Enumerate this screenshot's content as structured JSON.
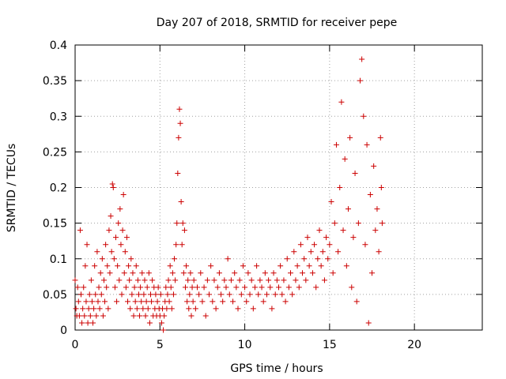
{
  "chart_data": {
    "type": "scatter",
    "title": "Day 207 of 2018, SRMTID for receiver pepe",
    "xlabel": "GPS time / hours",
    "ylabel": "SRMTID / TECUs",
    "xlim": [
      0,
      24
    ],
    "ylim": [
      0,
      0.4
    ],
    "x_ticks": [
      0,
      5,
      10,
      15,
      20
    ],
    "y_ticks": [
      0,
      0.05,
      0.1,
      0.15,
      0.2,
      0.25,
      0.3,
      0.35,
      0.4
    ],
    "x_tick_labels": [
      "0",
      "5",
      "10",
      "15",
      "20"
    ],
    "y_tick_labels": [
      "0",
      "0.05",
      "0.1",
      "0.15",
      "0.2",
      "0.25",
      "0.3",
      "0.35",
      "0.4"
    ],
    "grid": true,
    "marker": "+",
    "color": "#cc0000",
    "series": [
      {
        "name": "SRMTID",
        "points": [
          [
            0.0,
            0.07
          ],
          [
            0.05,
            0.03
          ],
          [
            0.1,
            0.02
          ],
          [
            0.15,
            0.06
          ],
          [
            0.2,
            0.04
          ],
          [
            0.25,
            0.02
          ],
          [
            0.3,
            0.14
          ],
          [
            0.35,
            0.05
          ],
          [
            0.4,
            0.01
          ],
          [
            0.45,
            0.03
          ],
          [
            0.5,
            0.06
          ],
          [
            0.55,
            0.02
          ],
          [
            0.6,
            0.09
          ],
          [
            0.65,
            0.04
          ],
          [
            0.7,
            0.12
          ],
          [
            0.75,
            0.01
          ],
          [
            0.8,
            0.03
          ],
          [
            0.85,
            0.05
          ],
          [
            0.9,
            0.02
          ],
          [
            0.95,
            0.07
          ],
          [
            1.0,
            0.04
          ],
          [
            1.05,
            0.01
          ],
          [
            1.1,
            0.03
          ],
          [
            1.15,
            0.09
          ],
          [
            1.2,
            0.05
          ],
          [
            1.25,
            0.02
          ],
          [
            1.3,
            0.11
          ],
          [
            1.35,
            0.04
          ],
          [
            1.4,
            0.06
          ],
          [
            1.45,
            0.03
          ],
          [
            1.5,
            0.08
          ],
          [
            1.55,
            0.05
          ],
          [
            1.6,
            0.1
          ],
          [
            1.65,
            0.02
          ],
          [
            1.7,
            0.07
          ],
          [
            1.75,
            0.04
          ],
          [
            1.8,
            0.12
          ],
          [
            1.85,
            0.06
          ],
          [
            1.9,
            0.09
          ],
          [
            1.95,
            0.03
          ],
          [
            2.0,
            0.14
          ],
          [
            2.05,
            0.08
          ],
          [
            2.1,
            0.16
          ],
          [
            2.15,
            0.11
          ],
          [
            2.2,
            0.205
          ],
          [
            2.25,
            0.2
          ],
          [
            2.3,
            0.1
          ],
          [
            2.35,
            0.06
          ],
          [
            2.4,
            0.13
          ],
          [
            2.45,
            0.04
          ],
          [
            2.5,
            0.09
          ],
          [
            2.55,
            0.15
          ],
          [
            2.6,
            0.07
          ],
          [
            2.65,
            0.17
          ],
          [
            2.7,
            0.12
          ],
          [
            2.75,
            0.05
          ],
          [
            2.8,
            0.14
          ],
          [
            2.85,
            0.19
          ],
          [
            2.9,
            0.08
          ],
          [
            2.95,
            0.11
          ],
          [
            3.0,
            0.06
          ],
          [
            3.05,
            0.13
          ],
          [
            3.1,
            0.04
          ],
          [
            3.15,
            0.09
          ],
          [
            3.2,
            0.07
          ],
          [
            3.25,
            0.03
          ],
          [
            3.3,
            0.1
          ],
          [
            3.35,
            0.05
          ],
          [
            3.4,
            0.08
          ],
          [
            3.45,
            0.02
          ],
          [
            3.5,
            0.06
          ],
          [
            3.55,
            0.04
          ],
          [
            3.6,
            0.09
          ],
          [
            3.65,
            0.03
          ],
          [
            3.7,
            0.07
          ],
          [
            3.75,
            0.05
          ],
          [
            3.8,
            0.02
          ],
          [
            3.85,
            0.06
          ],
          [
            3.9,
            0.04
          ],
          [
            3.95,
            0.08
          ],
          [
            4.0,
            0.03
          ],
          [
            4.05,
            0.05
          ],
          [
            4.1,
            0.07
          ],
          [
            4.15,
            0.02
          ],
          [
            4.2,
            0.04
          ],
          [
            4.25,
            0.06
          ],
          [
            4.3,
            0.03
          ],
          [
            4.35,
            0.08
          ],
          [
            4.4,
            0.01
          ],
          [
            4.45,
            0.05
          ],
          [
            4.5,
            0.04
          ],
          [
            4.55,
            0.07
          ],
          [
            4.6,
            0.02
          ],
          [
            4.65,
            0.06
          ],
          [
            4.7,
            0.03
          ],
          [
            4.75,
            0.05
          ],
          [
            4.8,
            0.02
          ],
          [
            4.85,
            0.04
          ],
          [
            4.9,
            0.06
          ],
          [
            4.95,
            0.03
          ],
          [
            5.0,
            0.02
          ],
          [
            5.05,
            0.05
          ],
          [
            5.1,
            0.01
          ],
          [
            5.15,
            0.03
          ],
          [
            5.2,
            0.0
          ],
          [
            5.25,
            0.02
          ],
          [
            5.3,
            0.04
          ],
          [
            5.35,
            0.06
          ],
          [
            5.4,
            0.03
          ],
          [
            5.45,
            0.05
          ],
          [
            5.5,
            0.07
          ],
          [
            5.55,
            0.04
          ],
          [
            5.6,
            0.09
          ],
          [
            5.65,
            0.06
          ],
          [
            5.7,
            0.03
          ],
          [
            5.75,
            0.08
          ],
          [
            5.8,
            0.05
          ],
          [
            5.85,
            0.1
          ],
          [
            5.9,
            0.07
          ],
          [
            5.95,
            0.12
          ],
          [
            6.0,
            0.15
          ],
          [
            6.05,
            0.22
          ],
          [
            6.1,
            0.27
          ],
          [
            6.15,
            0.31
          ],
          [
            6.2,
            0.29
          ],
          [
            6.25,
            0.18
          ],
          [
            6.3,
            0.12
          ],
          [
            6.35,
            0.15
          ],
          [
            6.4,
            0.08
          ],
          [
            6.45,
            0.14
          ],
          [
            6.5,
            0.06
          ],
          [
            6.55,
            0.09
          ],
          [
            6.6,
            0.04
          ],
          [
            6.65,
            0.07
          ],
          [
            6.7,
            0.03
          ],
          [
            6.75,
            0.05
          ],
          [
            6.8,
            0.08
          ],
          [
            6.85,
            0.02
          ],
          [
            6.9,
            0.06
          ],
          [
            6.95,
            0.04
          ],
          [
            7.0,
            0.07
          ],
          [
            7.1,
            0.03
          ],
          [
            7.2,
            0.06
          ],
          [
            7.3,
            0.05
          ],
          [
            7.4,
            0.08
          ],
          [
            7.5,
            0.04
          ],
          [
            7.6,
            0.06
          ],
          [
            7.7,
            0.02
          ],
          [
            7.8,
            0.07
          ],
          [
            7.9,
            0.05
          ],
          [
            8.0,
            0.09
          ],
          [
            8.1,
            0.04
          ],
          [
            8.2,
            0.07
          ],
          [
            8.3,
            0.03
          ],
          [
            8.4,
            0.06
          ],
          [
            8.5,
            0.08
          ],
          [
            8.6,
            0.05
          ],
          [
            8.7,
            0.04
          ],
          [
            8.8,
            0.07
          ],
          [
            8.9,
            0.06
          ],
          [
            9.0,
            0.1
          ],
          [
            9.1,
            0.05
          ],
          [
            9.2,
            0.07
          ],
          [
            9.3,
            0.04
          ],
          [
            9.4,
            0.08
          ],
          [
            9.5,
            0.06
          ],
          [
            9.6,
            0.03
          ],
          [
            9.7,
            0.07
          ],
          [
            9.8,
            0.05
          ],
          [
            9.9,
            0.09
          ],
          [
            10.0,
            0.06
          ],
          [
            10.1,
            0.04
          ],
          [
            10.2,
            0.08
          ],
          [
            10.3,
            0.05
          ],
          [
            10.4,
            0.07
          ],
          [
            10.5,
            0.03
          ],
          [
            10.6,
            0.06
          ],
          [
            10.7,
            0.09
          ],
          [
            10.8,
            0.05
          ],
          [
            10.9,
            0.07
          ],
          [
            11.0,
            0.06
          ],
          [
            11.1,
            0.04
          ],
          [
            11.2,
            0.08
          ],
          [
            11.3,
            0.05
          ],
          [
            11.4,
            0.07
          ],
          [
            11.5,
            0.06
          ],
          [
            11.6,
            0.03
          ],
          [
            11.7,
            0.08
          ],
          [
            11.8,
            0.05
          ],
          [
            11.9,
            0.07
          ],
          [
            12.0,
            0.06
          ],
          [
            12.1,
            0.09
          ],
          [
            12.2,
            0.05
          ],
          [
            12.3,
            0.07
          ],
          [
            12.4,
            0.04
          ],
          [
            12.5,
            0.1
          ],
          [
            12.6,
            0.06
          ],
          [
            12.7,
            0.08
          ],
          [
            12.8,
            0.05
          ],
          [
            12.9,
            0.11
          ],
          [
            13.0,
            0.07
          ],
          [
            13.1,
            0.09
          ],
          [
            13.2,
            0.06
          ],
          [
            13.3,
            0.12
          ],
          [
            13.4,
            0.08
          ],
          [
            13.5,
            0.1
          ],
          [
            13.6,
            0.07
          ],
          [
            13.7,
            0.13
          ],
          [
            13.8,
            0.09
          ],
          [
            13.9,
            0.11
          ],
          [
            14.0,
            0.08
          ],
          [
            14.1,
            0.12
          ],
          [
            14.2,
            0.06
          ],
          [
            14.3,
            0.1
          ],
          [
            14.4,
            0.14
          ],
          [
            14.5,
            0.09
          ],
          [
            14.6,
            0.11
          ],
          [
            14.7,
            0.07
          ],
          [
            14.8,
            0.13
          ],
          [
            14.9,
            0.1
          ],
          [
            15.0,
            0.12
          ],
          [
            15.1,
            0.18
          ],
          [
            15.2,
            0.08
          ],
          [
            15.3,
            0.15
          ],
          [
            15.4,
            0.26
          ],
          [
            15.5,
            0.11
          ],
          [
            15.6,
            0.2
          ],
          [
            15.7,
            0.32
          ],
          [
            15.8,
            0.14
          ],
          [
            15.9,
            0.24
          ],
          [
            16.0,
            0.09
          ],
          [
            16.1,
            0.17
          ],
          [
            16.2,
            0.27
          ],
          [
            16.3,
            0.06
          ],
          [
            16.4,
            0.13
          ],
          [
            16.5,
            0.22
          ],
          [
            16.6,
            0.04
          ],
          [
            16.7,
            0.15
          ],
          [
            16.8,
            0.35
          ],
          [
            16.9,
            0.38
          ],
          [
            17.0,
            0.3
          ],
          [
            17.1,
            0.12
          ],
          [
            17.2,
            0.26
          ],
          [
            17.3,
            0.01
          ],
          [
            17.4,
            0.19
          ],
          [
            17.5,
            0.08
          ],
          [
            17.6,
            0.23
          ],
          [
            17.7,
            0.14
          ],
          [
            17.8,
            0.17
          ],
          [
            17.9,
            0.11
          ],
          [
            18.0,
            0.27
          ],
          [
            18.05,
            0.2
          ],
          [
            18.1,
            0.15
          ]
        ]
      }
    ]
  }
}
